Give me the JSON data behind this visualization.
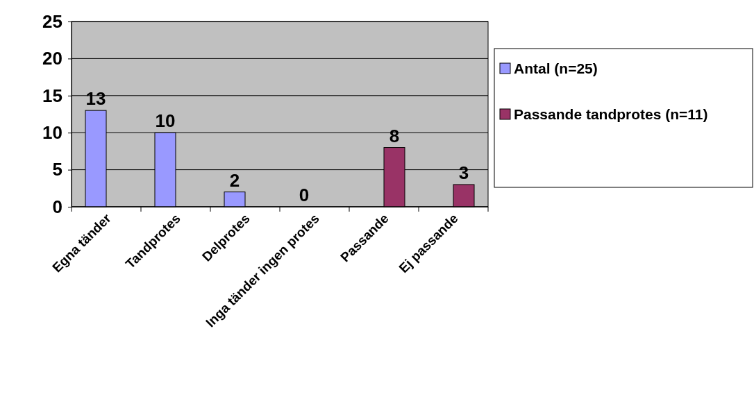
{
  "chart_data": {
    "type": "bar",
    "categories": [
      "Egna tänder",
      "Tandprotes",
      "Delprotes",
      "Inga tänder ingen protes",
      "Passande",
      "Ej passande"
    ],
    "series": [
      {
        "name": "Antal (n=25)",
        "color": "#9999ff",
        "values": [
          13,
          10,
          2,
          0,
          null,
          null
        ]
      },
      {
        "name": "Passande tandprotes (n=11)",
        "color": "#993366",
        "values": [
          null,
          null,
          null,
          null,
          8,
          3
        ]
      }
    ],
    "ylim": [
      0,
      25
    ],
    "yticks": [
      0,
      5,
      10,
      15,
      20,
      25
    ],
    "grid": "y",
    "legend": "right",
    "data_labels": true
  }
}
